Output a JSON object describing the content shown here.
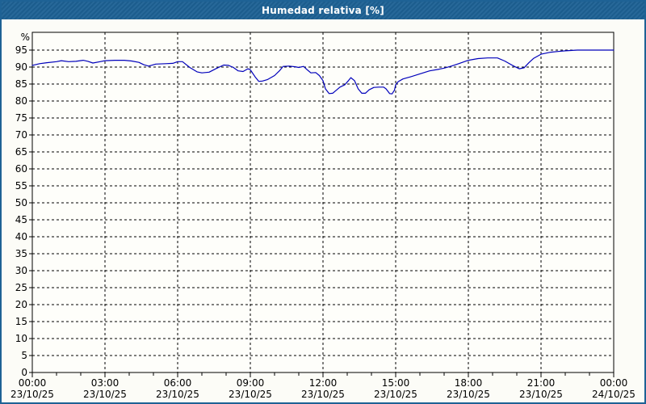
{
  "title": "Humedad relativa [%]",
  "colors": {
    "titlebar_bg": "#1e6295",
    "title_text": "#ffffff",
    "window_border": "#1e6295",
    "page_bg": "#fcfcf7",
    "plot_bg": "#fefefa",
    "grid": "#000000",
    "axis": "#000000",
    "tick_text": "#000000",
    "line": "#0000bb"
  },
  "chart_data": {
    "type": "line",
    "title": "Humedad relativa [%]",
    "xlabel": "",
    "ylabel": "%",
    "xlim": [
      0,
      24
    ],
    "ylim": [
      0,
      100.25
    ],
    "grid": "dashed",
    "legend": "none",
    "yticks": [
      0,
      5,
      10,
      15,
      20,
      25,
      30,
      35,
      40,
      45,
      50,
      55,
      60,
      65,
      70,
      75,
      80,
      85,
      90,
      95
    ],
    "x_minor_step_hours": 1,
    "x_major_step_hours": 3,
    "xticks": [
      {
        "h": 0,
        "time": "00:00",
        "date": "23/10/25"
      },
      {
        "h": 3,
        "time": "03:00",
        "date": "23/10/25"
      },
      {
        "h": 6,
        "time": "06:00",
        "date": "23/10/25"
      },
      {
        "h": 9,
        "time": "09:00",
        "date": "23/10/25"
      },
      {
        "h": 12,
        "time": "12:00",
        "date": "23/10/25"
      },
      {
        "h": 15,
        "time": "15:00",
        "date": "23/10/25"
      },
      {
        "h": 18,
        "time": "18:00",
        "date": "23/10/25"
      },
      {
        "h": 21,
        "time": "21:00",
        "date": "23/10/25"
      },
      {
        "h": 24,
        "time": "00:00",
        "date": "24/10/25"
      }
    ],
    "series": [
      {
        "name": "Humedad relativa",
        "color": "#0000bb",
        "points": [
          [
            0,
            90.5
          ],
          [
            0.3,
            91
          ],
          [
            0.6,
            91.3
          ],
          [
            1,
            91.6
          ],
          [
            1.2,
            91.9
          ],
          [
            1.5,
            91.6
          ],
          [
            1.8,
            91.7
          ],
          [
            2.1,
            92
          ],
          [
            2.3,
            91.7
          ],
          [
            2.5,
            91.2
          ],
          [
            2.8,
            91.6
          ],
          [
            3,
            91.9
          ],
          [
            3.4,
            92
          ],
          [
            3.8,
            92
          ],
          [
            4.1,
            91.8
          ],
          [
            4.4,
            91.4
          ],
          [
            4.6,
            90.7
          ],
          [
            4.8,
            90.3
          ],
          [
            5.1,
            90.9
          ],
          [
            5.5,
            91
          ],
          [
            5.8,
            91.1
          ],
          [
            6,
            91.6
          ],
          [
            6.2,
            91.6
          ],
          [
            6.5,
            89.9
          ],
          [
            6.8,
            88.6
          ],
          [
            7,
            88.3
          ],
          [
            7.3,
            88.5
          ],
          [
            7.6,
            89.6
          ],
          [
            7.9,
            90.6
          ],
          [
            8.1,
            90.5
          ],
          [
            8.3,
            89.9
          ],
          [
            8.5,
            88.9
          ],
          [
            8.7,
            88.7
          ],
          [
            8.9,
            89.5
          ],
          [
            9,
            89.2
          ],
          [
            9.2,
            87.1
          ],
          [
            9.35,
            85.8
          ],
          [
            9.5,
            85.9
          ],
          [
            9.7,
            86.3
          ],
          [
            10,
            87.5
          ],
          [
            10.2,
            88.9
          ],
          [
            10.35,
            90.2
          ],
          [
            10.6,
            90.3
          ],
          [
            10.85,
            90.1
          ],
          [
            11,
            89.9
          ],
          [
            11.2,
            90.2
          ],
          [
            11.35,
            89.2
          ],
          [
            11.5,
            88.3
          ],
          [
            11.7,
            88.4
          ],
          [
            11.85,
            87.5
          ],
          [
            12,
            86
          ],
          [
            12.1,
            83.6
          ],
          [
            12.25,
            82.2
          ],
          [
            12.4,
            82.3
          ],
          [
            12.7,
            84.1
          ],
          [
            12.9,
            84.8
          ],
          [
            13.05,
            86
          ],
          [
            13.15,
            86.9
          ],
          [
            13.3,
            86
          ],
          [
            13.45,
            83.6
          ],
          [
            13.6,
            82.3
          ],
          [
            13.75,
            82.3
          ],
          [
            13.9,
            83.3
          ],
          [
            14.1,
            84
          ],
          [
            14.3,
            84.1
          ],
          [
            14.5,
            84.1
          ],
          [
            14.6,
            83.6
          ],
          [
            14.75,
            82.2
          ],
          [
            14.85,
            82.1
          ],
          [
            14.95,
            83.2
          ],
          [
            15,
            84.8
          ],
          [
            15.1,
            85.7
          ],
          [
            15.3,
            86.5
          ],
          [
            15.6,
            87.1
          ],
          [
            16,
            88
          ],
          [
            16.4,
            88.9
          ],
          [
            16.8,
            89.4
          ],
          [
            17,
            89.7
          ],
          [
            17.3,
            90.3
          ],
          [
            17.6,
            91
          ],
          [
            18,
            92
          ],
          [
            18.4,
            92.5
          ],
          [
            18.8,
            92.7
          ],
          [
            19.2,
            92.7
          ],
          [
            19.5,
            91.8
          ],
          [
            19.9,
            90.2
          ],
          [
            20.1,
            89.5
          ],
          [
            20.3,
            89.8
          ],
          [
            20.5,
            91.3
          ],
          [
            20.7,
            92.6
          ],
          [
            21,
            93.8
          ],
          [
            21.4,
            94.4
          ],
          [
            21.7,
            94.6
          ],
          [
            22,
            94.8
          ],
          [
            22.5,
            95
          ],
          [
            23,
            95
          ],
          [
            23.5,
            95
          ],
          [
            24,
            95
          ]
        ]
      }
    ]
  }
}
